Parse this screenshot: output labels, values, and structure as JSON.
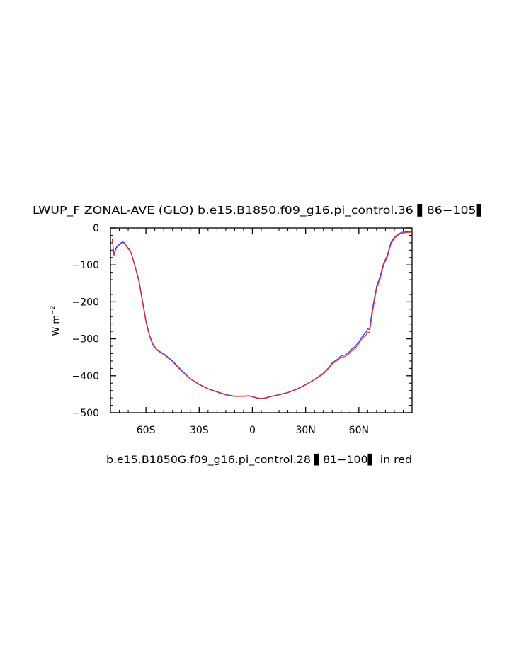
{
  "chart_data": {
    "type": "line",
    "title": "LWUP_F ZONAL-AVE (GLO) b.e15.B1850.f09_g16.pi_control.36 ▌86−105▌",
    "ylabel": "W m",
    "ylabel_sup": "−2",
    "footer": "b.e15.B1850G.f09_g16.pi_control.28 ▌81−100▌ in red",
    "xlim": [
      -80,
      90
    ],
    "ylim": [
      -500,
      0
    ],
    "grid": false,
    "x_ticks": [
      {
        "value": -60,
        "label": "60S"
      },
      {
        "value": -30,
        "label": "30S"
      },
      {
        "value": 0,
        "label": "0"
      },
      {
        "value": 30,
        "label": "30N"
      },
      {
        "value": 60,
        "label": "60N"
      }
    ],
    "y_ticks": [
      {
        "value": 0,
        "label": "0"
      },
      {
        "value": -100,
        "label": "−100"
      },
      {
        "value": -200,
        "label": "−200"
      },
      {
        "value": -300,
        "label": "−300"
      },
      {
        "value": -400,
        "label": "−400"
      },
      {
        "value": -500,
        "label": "−500"
      }
    ],
    "series": [
      {
        "color": "#1f3fff",
        "x": [
          -79,
          -78,
          -77,
          -76,
          -74,
          -73,
          -72,
          -71,
          -70,
          -69,
          -68,
          -66,
          -64,
          -62,
          -60,
          -58,
          -56,
          -54,
          -52,
          -50,
          -48,
          -45,
          -40,
          -35,
          -30,
          -25,
          -20,
          -15,
          -10,
          -5,
          -2,
          0,
          2,
          4,
          6,
          8,
          10,
          15,
          20,
          25,
          30,
          35,
          40,
          43,
          45,
          48,
          50,
          52,
          54,
          56,
          58,
          60,
          61,
          62,
          64,
          65,
          66,
          67,
          68,
          70,
          72,
          74,
          76,
          78,
          80,
          82,
          84,
          86,
          88,
          90
        ],
        "y": [
          -30,
          -72,
          -55,
          -48,
          -40,
          -38,
          -40,
          -48,
          -55,
          -60,
          -72,
          -105,
          -140,
          -195,
          -250,
          -290,
          -315,
          -328,
          -335,
          -340,
          -348,
          -360,
          -385,
          -408,
          -423,
          -435,
          -443,
          -451,
          -455,
          -455,
          -454,
          -456,
          -459,
          -461,
          -461,
          -459,
          -456,
          -451,
          -445,
          -436,
          -424,
          -410,
          -393,
          -378,
          -365,
          -355,
          -346,
          -344,
          -338,
          -328,
          -320,
          -308,
          -300,
          -293,
          -282,
          -273,
          -275,
          -240,
          -210,
          -158,
          -130,
          -95,
          -75,
          -40,
          -25,
          -17,
          -12,
          -11,
          -10,
          -10
        ]
      },
      {
        "color": "#ff1f1f",
        "x": [
          -79,
          -78,
          -77,
          -76,
          -74,
          -73,
          -72,
          -71,
          -70,
          -69,
          -68,
          -66,
          -64,
          -62,
          -60,
          -58,
          -56,
          -54,
          -52,
          -50,
          -48,
          -45,
          -40,
          -35,
          -30,
          -25,
          -20,
          -15,
          -10,
          -5,
          -2,
          0,
          2,
          4,
          6,
          8,
          10,
          15,
          20,
          25,
          30,
          35,
          40,
          43,
          45,
          48,
          50,
          52,
          54,
          56,
          58,
          60,
          61,
          62,
          64,
          65,
          66,
          67,
          68,
          70,
          72,
          74,
          76,
          78,
          80,
          82,
          84,
          86,
          88,
          90
        ],
        "y": [
          -32,
          -75,
          -58,
          -50,
          -42,
          -40,
          -42,
          -50,
          -57,
          -62,
          -74,
          -108,
          -145,
          -200,
          -255,
          -293,
          -318,
          -330,
          -337,
          -342,
          -350,
          -362,
          -387,
          -409,
          -424,
          -436,
          -444,
          -452,
          -456,
          -456,
          -455,
          -457,
          -460,
          -462,
          -462,
          -460,
          -457,
          -452,
          -446,
          -437,
          -425,
          -411,
          -395,
          -380,
          -368,
          -358,
          -350,
          -348,
          -343,
          -333,
          -325,
          -313,
          -305,
          -298,
          -290,
          -282,
          -283,
          -250,
          -220,
          -165,
          -138,
          -100,
          -80,
          -45,
          -28,
          -20,
          -15,
          -13,
          -12,
          -12
        ]
      }
    ]
  }
}
